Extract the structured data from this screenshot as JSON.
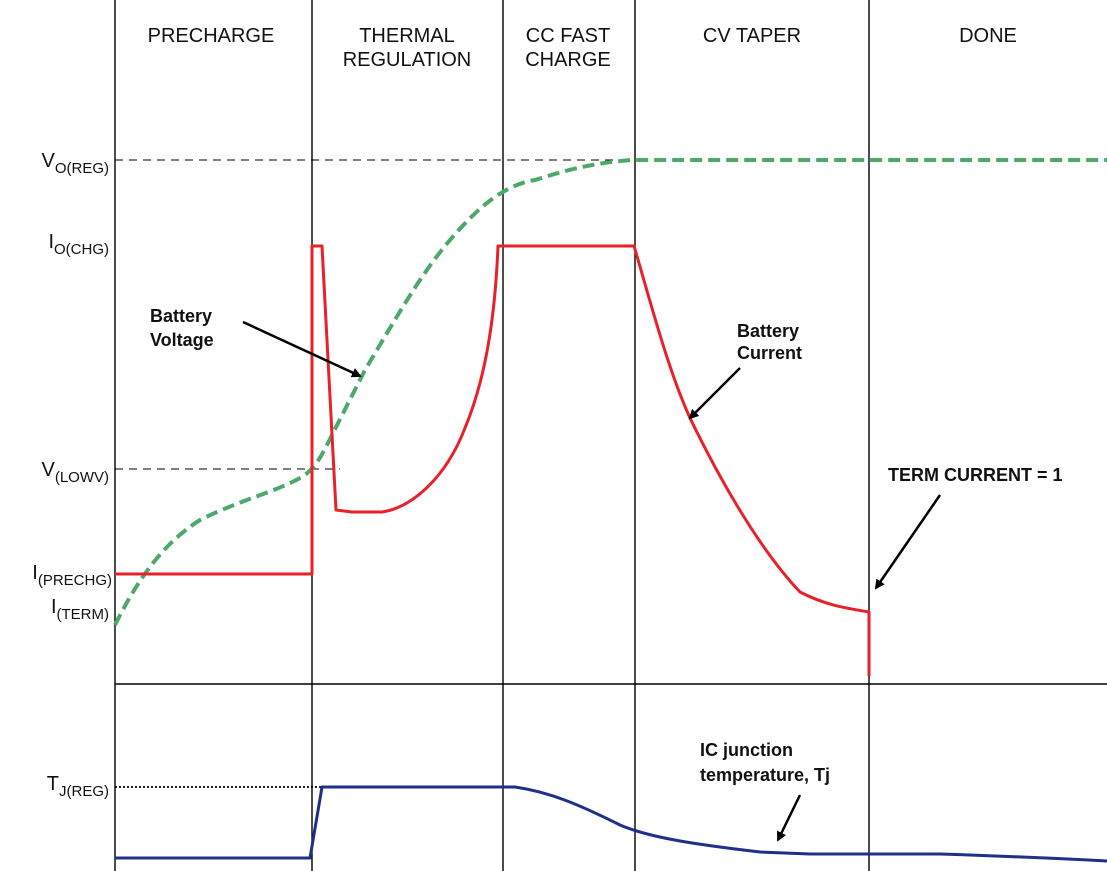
{
  "phases": [
    {
      "lines": [
        "PRECHARGE"
      ]
    },
    {
      "lines": [
        "THERMAL",
        "REGULATION"
      ]
    },
    {
      "lines": [
        "CC FAST",
        "CHARGE"
      ]
    },
    {
      "lines": [
        "CV TAPER"
      ]
    },
    {
      "lines": [
        "DONE"
      ]
    }
  ],
  "y_labels": {
    "v_oreg": {
      "main": "V",
      "sub": "O(REG)"
    },
    "i_ochg": {
      "main": "I",
      "sub": "O(CHG)"
    },
    "v_lowv": {
      "main": "V",
      "sub": "(LOWV)"
    },
    "i_prechg": {
      "main": "I",
      "sub": "(PRECHG)"
    },
    "i_term": {
      "main": "I",
      "sub": "(TERM)"
    },
    "t_jreg": {
      "main": "T",
      "sub": "J(REG)"
    }
  },
  "annotations": {
    "battery_voltage": [
      "Battery",
      "Voltage"
    ],
    "battery_current": [
      "Battery",
      "Current"
    ],
    "term_current": "TERM CURRENT = 1",
    "junction_temp": [
      "IC junction",
      "temperature, Tj"
    ]
  },
  "colors": {
    "voltage": "#4fa86b",
    "current": "#e8202a",
    "temperature": "#1f2f8a",
    "grid": "#000000"
  }
}
